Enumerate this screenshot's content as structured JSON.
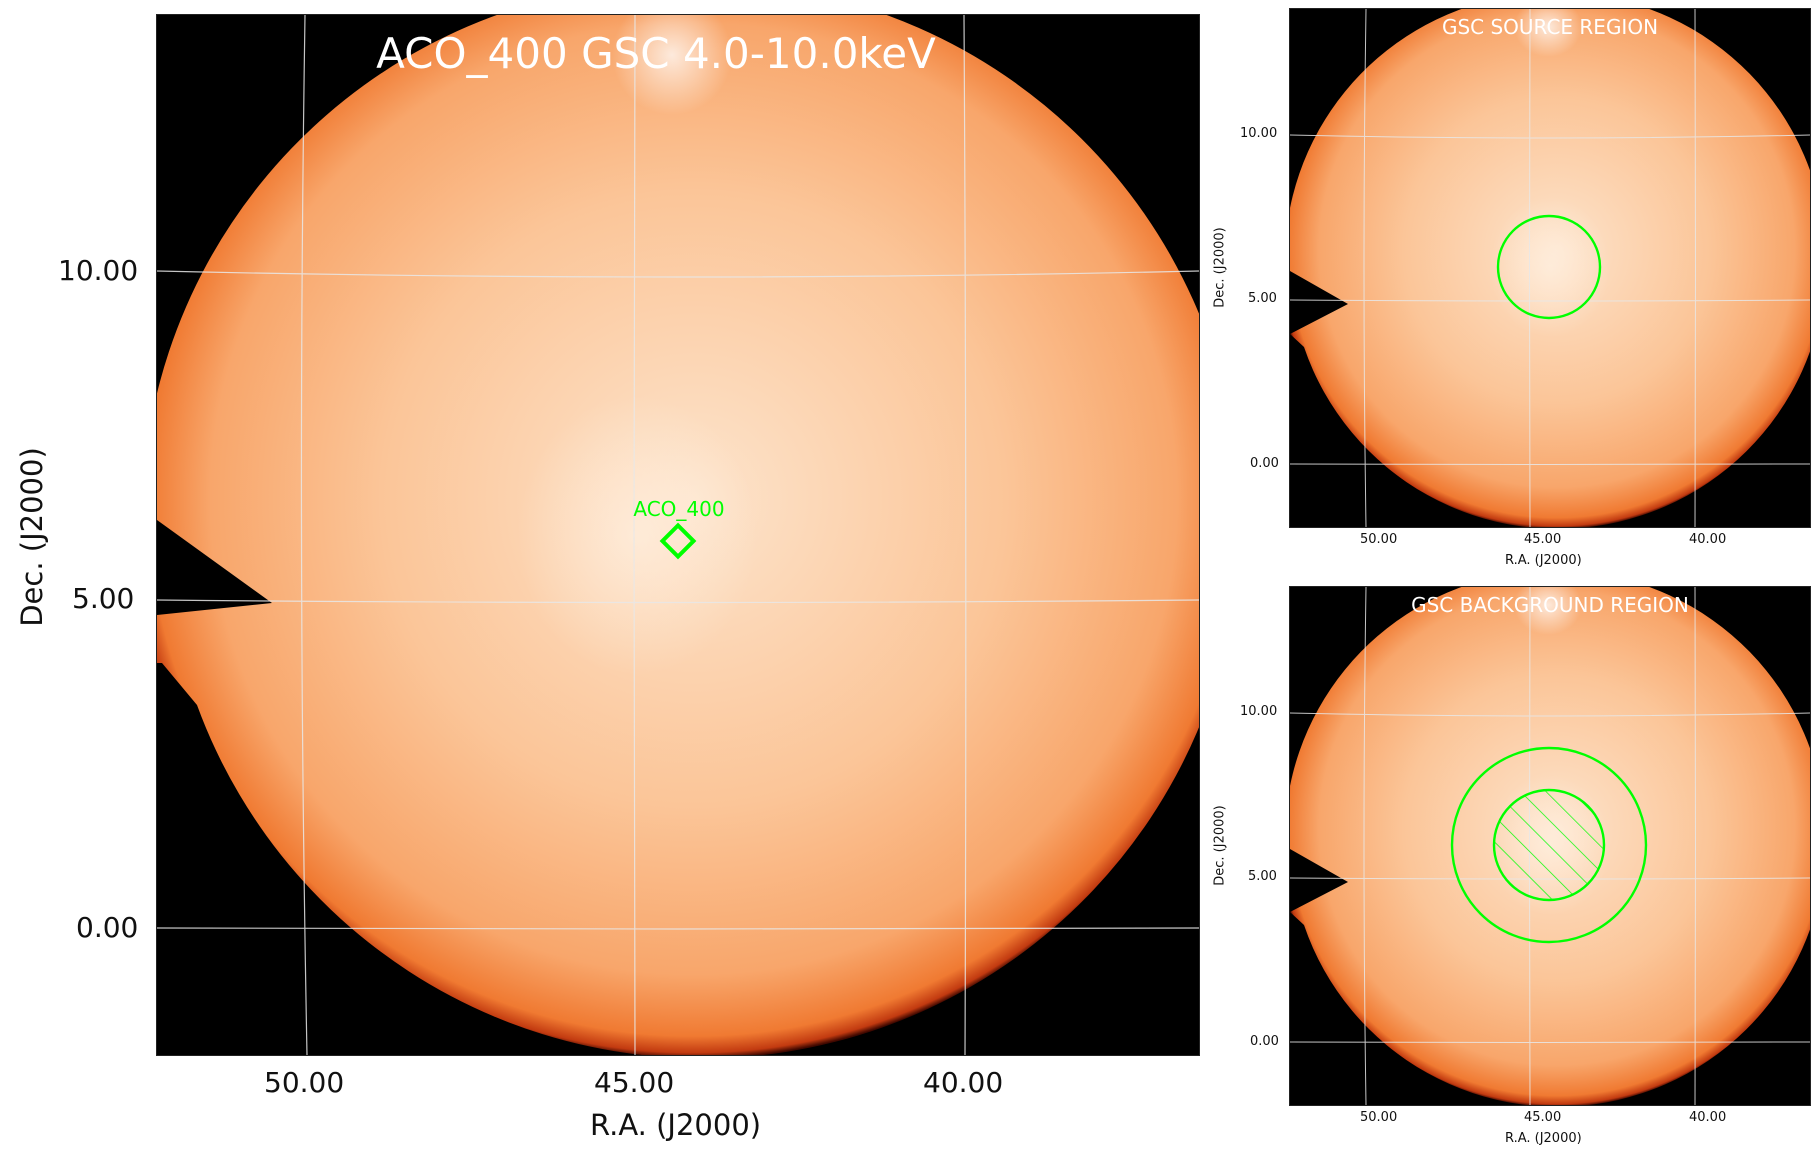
{
  "main": {
    "title": "ACO_400 GSC 4.0-10.0keV",
    "source_label": "ACO_400",
    "x_axis_label": "R.A. (J2000)",
    "y_axis_label": "Dec. (J2000)",
    "x_ticks": [
      "50.00",
      "45.00",
      "40.00"
    ],
    "y_ticks": [
      "10.00",
      "5.00",
      "0.00"
    ]
  },
  "source_region": {
    "title": "GSC SOURCE REGION",
    "x_axis_label": "R.A. (J2000)",
    "y_axis_label": "Dec. (J2000)",
    "x_ticks": [
      "50.00",
      "45.00",
      "40.00"
    ],
    "y_ticks": [
      "10.00",
      "5.00",
      "0.00"
    ]
  },
  "background_region": {
    "title": "GSC BACKGROUND REGION",
    "x_axis_label": "R.A. (J2000)",
    "y_axis_label": "Dec. (J2000)",
    "x_ticks": [
      "50.00",
      "45.00",
      "40.00"
    ],
    "y_ticks": [
      "10.00",
      "5.00",
      "0.00"
    ]
  },
  "colors": {
    "background": "#000000",
    "disk": "#f79a57",
    "disk_center": "#fde6d0",
    "region": "#00ff00",
    "grid": "#e8e8e8"
  }
}
